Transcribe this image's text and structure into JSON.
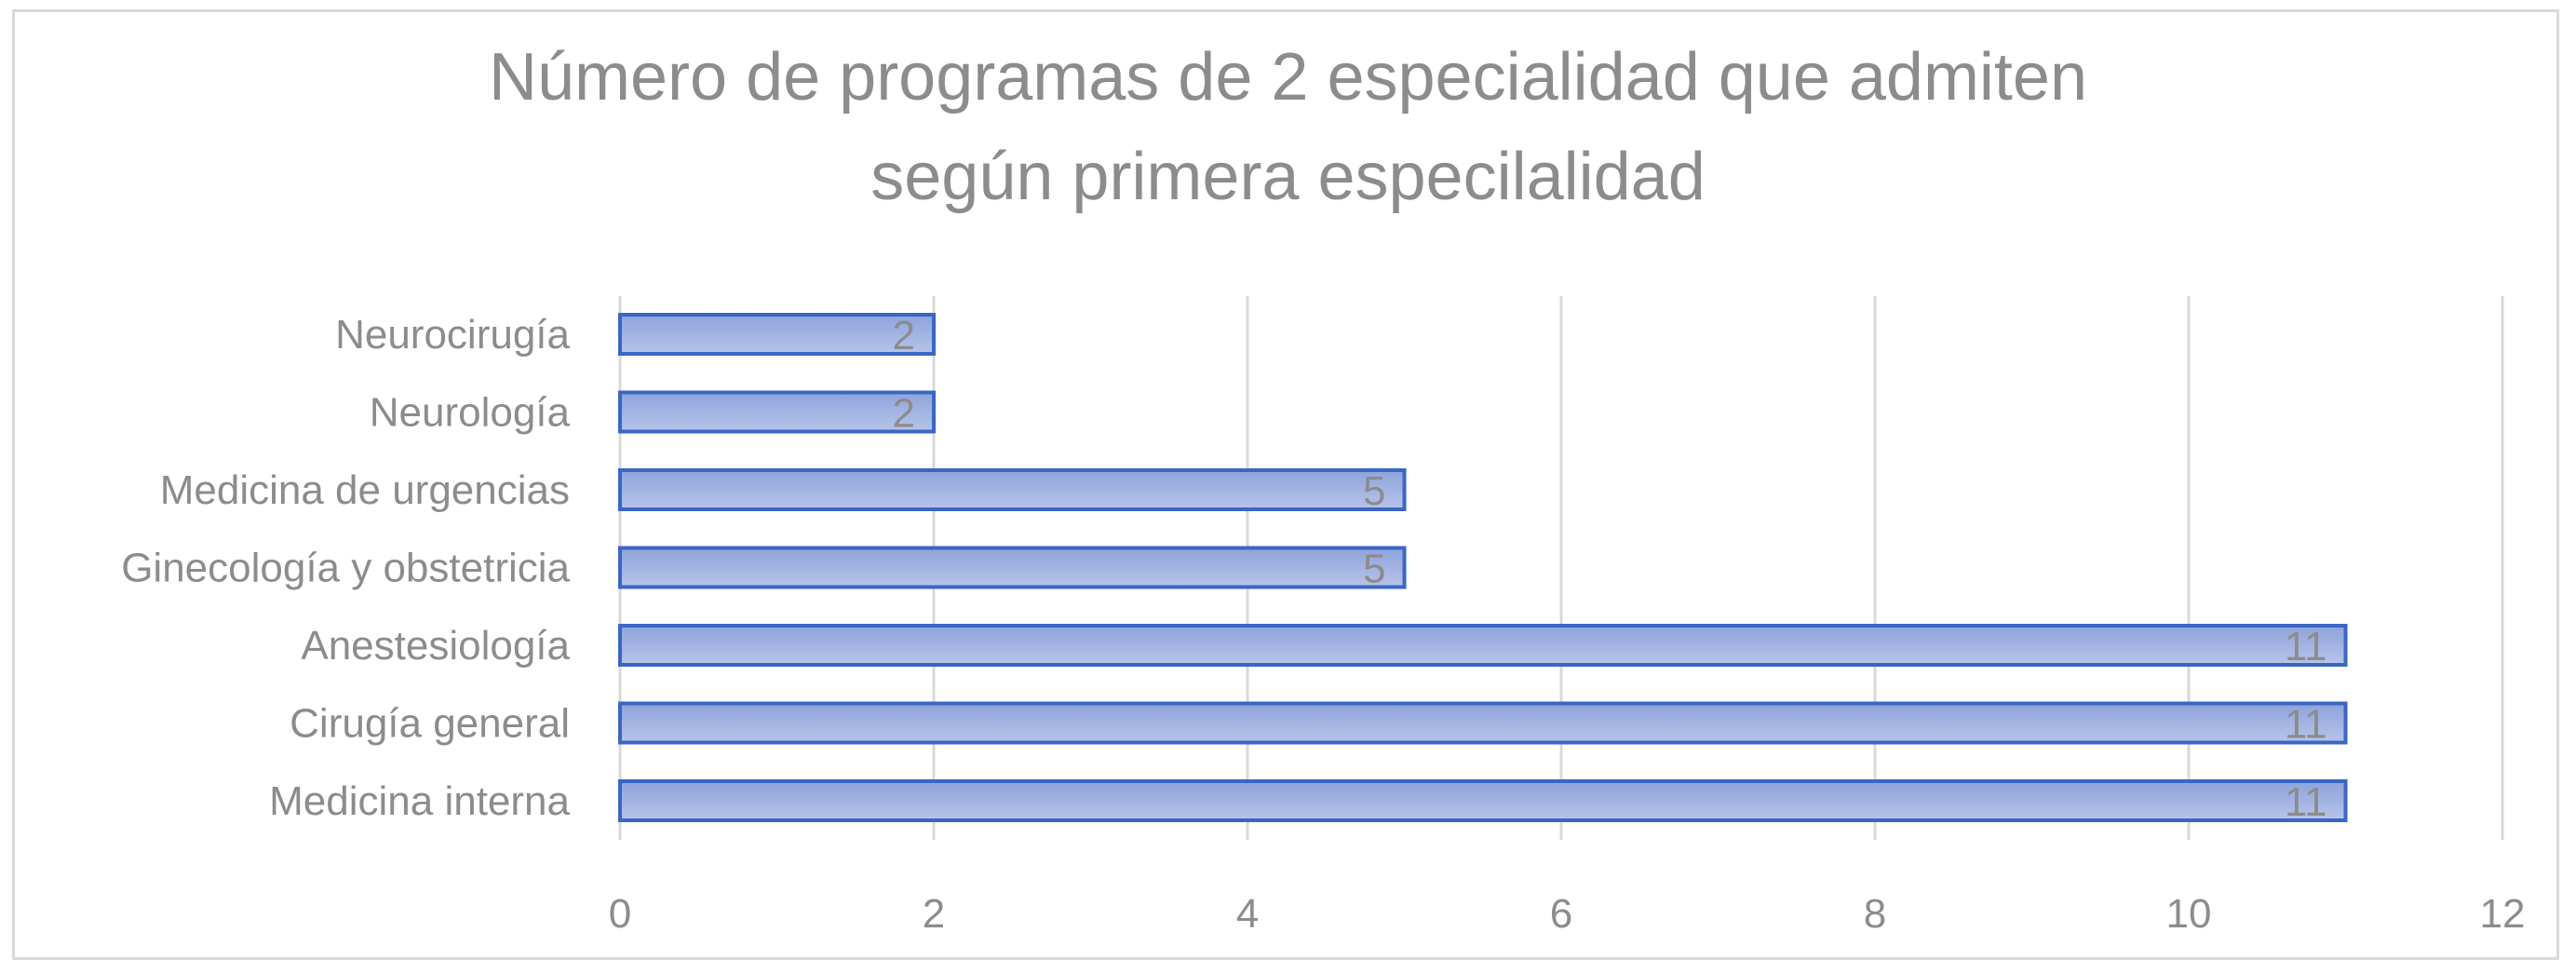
{
  "chart_data": {
    "type": "bar",
    "orientation": "horizontal",
    "title_lines": [
      "Número de programas de 2 especialidad  que admiten",
      "según primera especilalidad"
    ],
    "categories": [
      "Medicina interna",
      "Cirugía general",
      "Anestesiología",
      "Ginecología y obstetricia",
      "Medicina de urgencias",
      "Neurología",
      "Neurocirugía"
    ],
    "values": [
      11,
      11,
      11,
      5,
      5,
      2,
      2
    ],
    "xlim": [
      0,
      12
    ],
    "xticks": [
      0,
      2,
      4,
      6,
      8,
      10,
      12
    ],
    "grid": "vertical",
    "legend": "none",
    "data_labels": true,
    "colors": {
      "bar_top": "#8ea3db",
      "bar_bottom": "#b7c4ea",
      "bar_stroke": "#3a66c4",
      "grid": "#d9d9d9",
      "text": "#8c8c8c"
    }
  }
}
